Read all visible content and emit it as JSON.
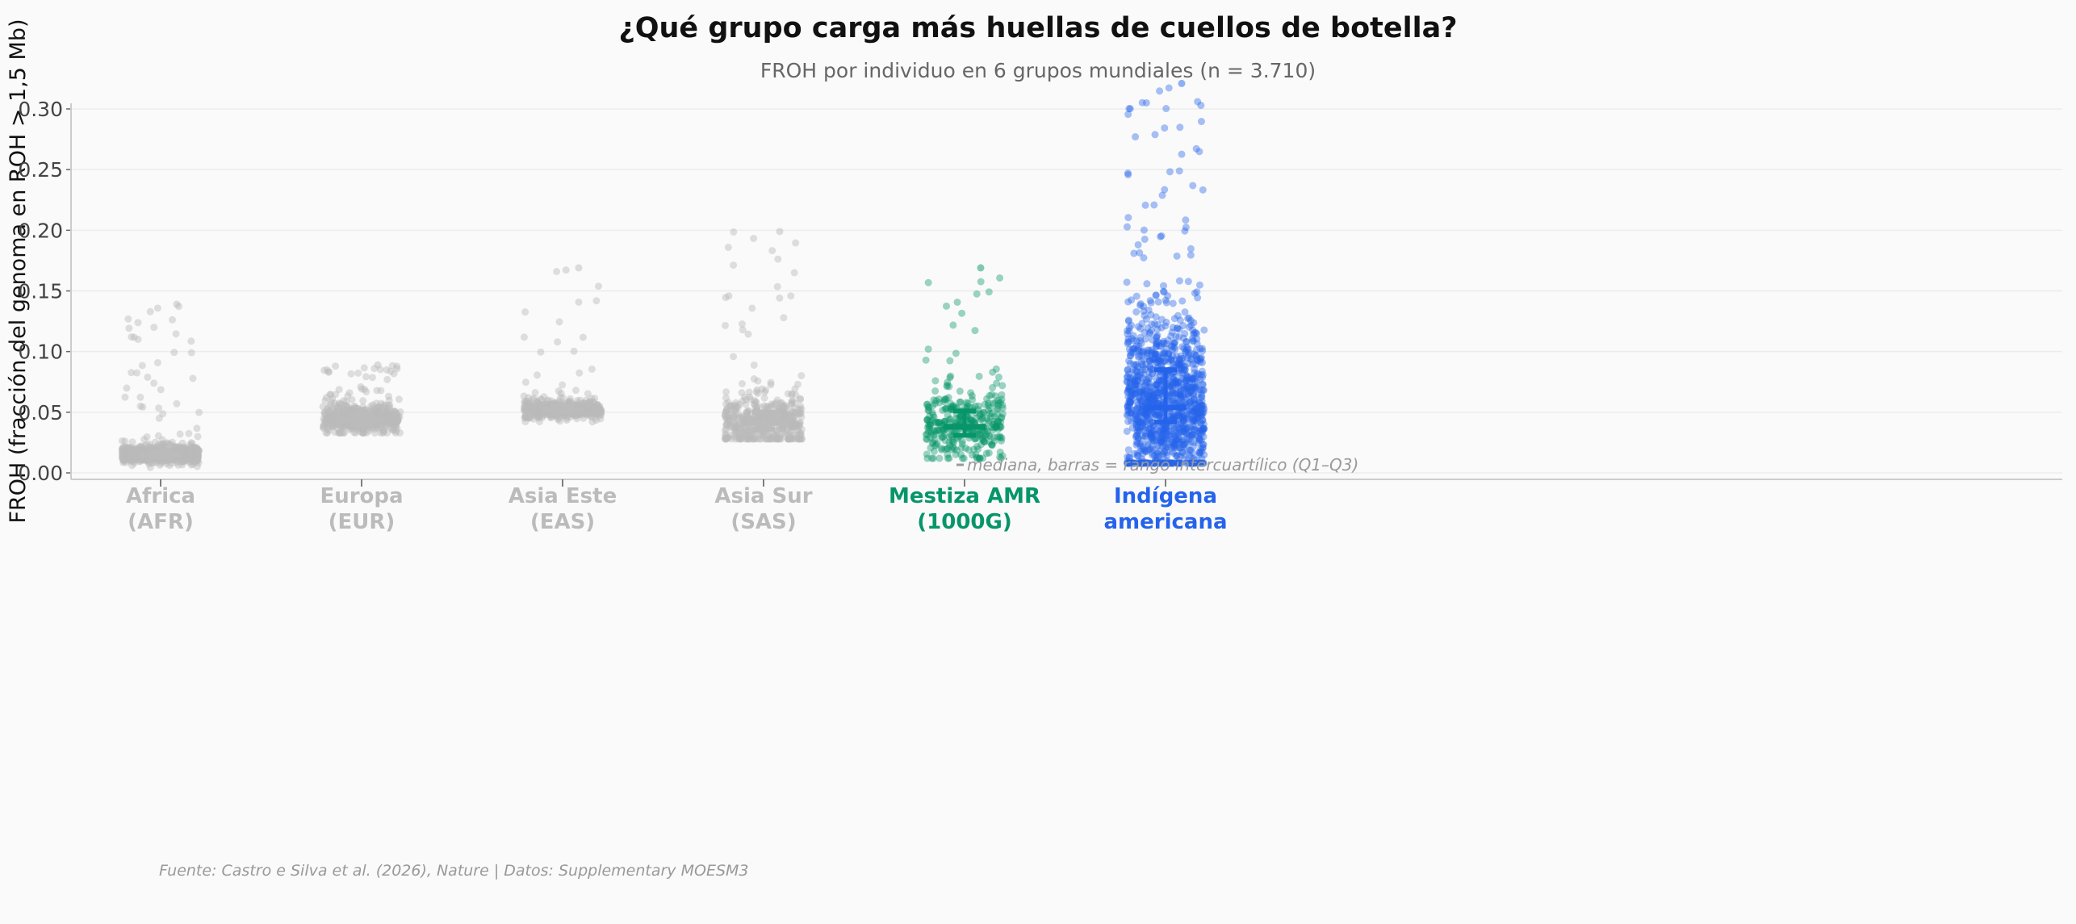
{
  "chart_data": {
    "type": "scatter",
    "subtype": "jittered strip plot with median and interquartile range",
    "title": "¿Qué grupo carga más huellas de cuellos de botella?",
    "subtitle": "FROH por individuo en 6 grupos mundiales (n = 3.710)",
    "ylabel": "FROH (fracción del genoma en ROH > 1,5 Mb)",
    "xlabel": "",
    "ylim": [
      -0.005,
      0.337
    ],
    "yticks": [
      "0.00",
      "0.05",
      "0.10",
      "0.15",
      "0.20",
      "0.25",
      "0.30"
    ],
    "grid": "horizontal",
    "categories": [
      {
        "label_line1": "Africa",
        "label_line2": "(AFR)",
        "color": "#bbbbbb",
        "median": 0.015,
        "q1": 0.013,
        "q3": 0.018,
        "min": 0.004,
        "max": 0.139
      },
      {
        "label_line1": "Europa",
        "label_line2": "(EUR)",
        "color": "#bbbbbb",
        "median": 0.044,
        "q1": 0.04,
        "q3": 0.048,
        "min": 0.033,
        "max": 0.089
      },
      {
        "label_line1": "Asia Este",
        "label_line2": "(EAS)",
        "color": "#bbbbbb",
        "median": 0.052,
        "q1": 0.05,
        "q3": 0.055,
        "min": 0.041,
        "max": 0.169
      },
      {
        "label_line1": "Asia Sur",
        "label_line2": "(SAS)",
        "color": "#bbbbbb",
        "median": 0.041,
        "q1": 0.036,
        "q3": 0.05,
        "min": 0.028,
        "max": 0.199
      },
      {
        "label_line1": "Mestiza AMR",
        "label_line2": "(1000G)",
        "color": "#07956a",
        "median": 0.038,
        "q1": 0.031,
        "q3": 0.051,
        "min": 0.012,
        "max": 0.169
      },
      {
        "label_line1": "Indígena",
        "label_line2": "americana",
        "color": "#2563eb",
        "median": 0.054,
        "q1": 0.042,
        "q3": 0.085,
        "min": 0.008,
        "max": 0.321
      }
    ],
    "annotation": "mediana, barras = rango intercuartílico (Q1–Q3)",
    "source": "Fuente: Castro e Silva et al. (2026), Nature | Datos: Supplementary MOESM3"
  }
}
